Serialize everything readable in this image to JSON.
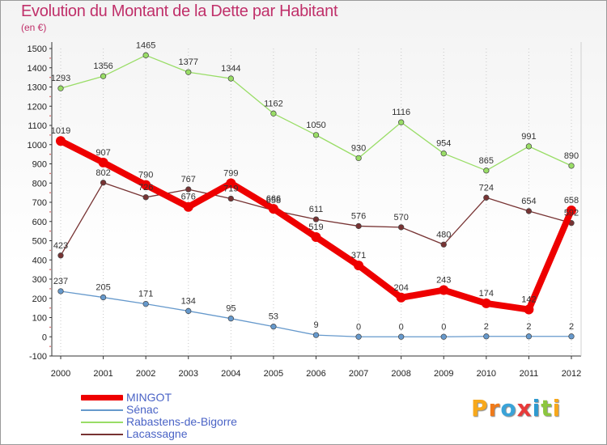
{
  "header": {
    "title": "Evolution du Montant de la Dette par Habitant",
    "unit": "(en €)"
  },
  "logo": {
    "text": "Proxiti"
  },
  "chart_data": {
    "type": "line",
    "title": "Evolution du Montant de la Dette par Habitant",
    "ylabel": "(en €)",
    "xlabel": "",
    "x": [
      "2000",
      "2001",
      "2002",
      "2003",
      "2004",
      "2005",
      "2006",
      "2007",
      "2008",
      "2009",
      "2010",
      "2011",
      "2012"
    ],
    "ylim": [
      -100,
      1500
    ],
    "yticks": [
      "-100",
      "0",
      "100",
      "200",
      "300",
      "400",
      "500",
      "600",
      "700",
      "800",
      "900",
      "1000",
      "1100",
      "1200",
      "1300",
      "1400",
      "1500"
    ],
    "grid": "vertical dotted",
    "legend_position": "bottom-left",
    "series": [
      {
        "name": "MINGOT",
        "color": "#ee0000",
        "values": [
          1019,
          907,
          790,
          676,
          799,
          666,
          519,
          371,
          204,
          243,
          174,
          142,
          658
        ],
        "labels": [
          "1019",
          "907",
          "790",
          "676",
          "799",
          "666",
          "519",
          "371",
          "204",
          "243",
          "174",
          "142",
          "658"
        ]
      },
      {
        "name": "Sénac",
        "color": "#6699cc",
        "values": [
          237,
          205,
          171,
          134,
          95,
          53,
          9,
          0,
          0,
          0,
          2,
          2,
          2
        ],
        "labels": [
          "237",
          "205",
          "171",
          "134",
          "95",
          "53",
          "9",
          "0",
          "0",
          "0",
          "2",
          "2",
          "2"
        ]
      },
      {
        "name": "Rabastens-de-Bigorre",
        "color": "#99dd66",
        "values": [
          1293,
          1356,
          1465,
          1377,
          1344,
          1162,
          1050,
          930,
          1116,
          954,
          865,
          991,
          890
        ],
        "labels": [
          "1293",
          "1356",
          "1465",
          "1377",
          "1344",
          "1162",
          "1050",
          "930",
          "1116",
          "954",
          "865",
          "991",
          "890"
        ]
      },
      {
        "name": "Lacassagne",
        "color": "#773333",
        "values": [
          423,
          802,
          726,
          767,
          719,
          658,
          611,
          576,
          570,
          480,
          724,
          654,
          592
        ],
        "labels": [
          "423",
          "802",
          "726",
          "767",
          "719",
          "658",
          "611",
          "576",
          "570",
          "480",
          "724",
          "654",
          "592"
        ]
      }
    ]
  }
}
